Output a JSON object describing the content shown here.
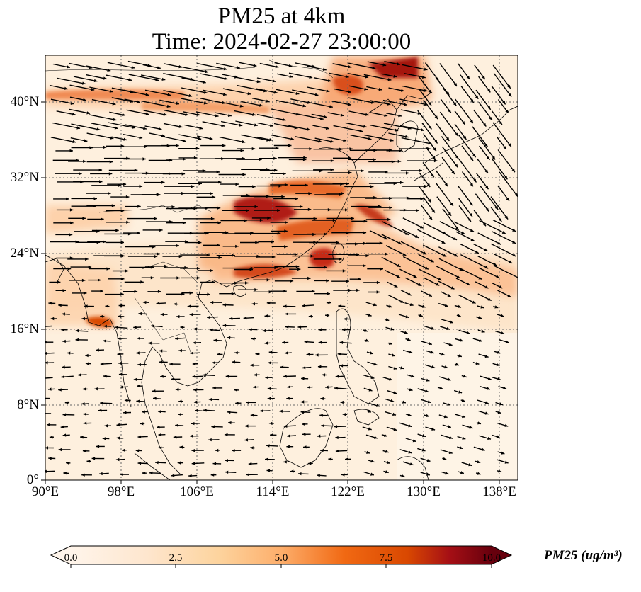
{
  "title_line1": "PM25 at 4km",
  "title_line2": "Time: 2024-02-27 23:00:00",
  "lat_labels": [
    "40°N",
    "32°N",
    "24°N",
    "16°N",
    "8°N",
    "0°"
  ],
  "lon_labels": [
    "90°E",
    "98°E",
    "106°E",
    "114°E",
    "122°E",
    "130°E",
    "138°E"
  ],
  "colorbar": {
    "label": "PM25 (ug/m³)",
    "ticks": [
      "0.0",
      "2.5",
      "5.0",
      "7.5",
      "10.0"
    ],
    "colors": [
      "#fff5eb",
      "#fdd49e",
      "#fdae6b",
      "#f16913",
      "#d94801",
      "#a50f15",
      "#67000d"
    ]
  },
  "map": {
    "projection": "PlateCarree",
    "lon_range": [
      90,
      140
    ],
    "lat_range": [
      0,
      45
    ],
    "gridlines": "dotted",
    "wind_vectors": true
  }
}
